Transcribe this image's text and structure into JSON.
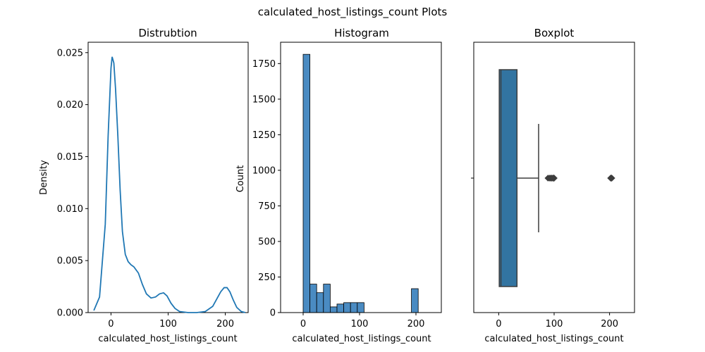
{
  "figure": {
    "suptitle": "calculated_host_listings_count Plots"
  },
  "chart_data": [
    {
      "type": "line",
      "title": "Distrubtion",
      "xlabel": "calculated_host_listings_count",
      "ylabel": "Density",
      "xlim": [
        -40,
        240
      ],
      "ylim": [
        0,
        0.026
      ],
      "x_ticks": [
        0,
        100,
        200
      ],
      "y_ticks": [
        0.0,
        0.005,
        0.01,
        0.015,
        0.02,
        0.025
      ],
      "x_tick_labels": [
        "0",
        "100",
        "200"
      ],
      "y_tick_labels": [
        "0.000",
        "0.005",
        "0.010",
        "0.015",
        "0.020",
        "0.025"
      ],
      "color": "#1f77b4",
      "series": [
        {
          "x": [
            -30,
            -20,
            -10,
            -5,
            0,
            2,
            5,
            8,
            12,
            16,
            20,
            25,
            30,
            35,
            40,
            48,
            55,
            62,
            70,
            78,
            85,
            92,
            98,
            105,
            112,
            120,
            135,
            150,
            165,
            178,
            185,
            192,
            198,
            203,
            208,
            214,
            220,
            228,
            235
          ],
          "y": [
            0.0002,
            0.0015,
            0.0085,
            0.017,
            0.0235,
            0.0246,
            0.024,
            0.0215,
            0.017,
            0.0118,
            0.0078,
            0.0056,
            0.0049,
            0.0046,
            0.0044,
            0.0038,
            0.0027,
            0.0018,
            0.0014,
            0.0015,
            0.0018,
            0.0019,
            0.0016,
            0.0009,
            0.0004,
            0.0001,
            0.0,
            0.0,
            0.0001,
            0.0006,
            0.0013,
            0.002,
            0.0024,
            0.0024,
            0.002,
            0.0012,
            0.0005,
            0.0001,
            0.0
          ]
        }
      ]
    },
    {
      "type": "bar",
      "title": "Histogram",
      "xlabel": "calculated_host_listings_count",
      "ylabel": "Count",
      "xlim": [
        -40,
        245
      ],
      "ylim": [
        0,
        1900
      ],
      "x_ticks": [
        0,
        100,
        200
      ],
      "y_ticks": [
        0,
        250,
        500,
        750,
        1000,
        1250,
        1500,
        1750
      ],
      "x_tick_labels": [
        "0",
        "100",
        "200"
      ],
      "y_tick_labels": [
        "0",
        "250",
        "500",
        "750",
        "1000",
        "1250",
        "1500",
        "1750"
      ],
      "color": "#4a8bc2",
      "bins": [
        {
          "x0": 0,
          "x1": 12,
          "value": 1815
        },
        {
          "x0": 12,
          "x1": 24,
          "value": 200
        },
        {
          "x0": 24,
          "x1": 36,
          "value": 140
        },
        {
          "x0": 36,
          "x1": 48,
          "value": 200
        },
        {
          "x0": 48,
          "x1": 60,
          "value": 40
        },
        {
          "x0": 60,
          "x1": 72,
          "value": 60
        },
        {
          "x0": 72,
          "x1": 84,
          "value": 70
        },
        {
          "x0": 84,
          "x1": 96,
          "value": 70
        },
        {
          "x0": 96,
          "x1": 108,
          "value": 70
        },
        {
          "x0": 108,
          "x1": 120,
          "value": 0
        },
        {
          "x0": 120,
          "x1": 132,
          "value": 0
        },
        {
          "x0": 132,
          "x1": 144,
          "value": 0
        },
        {
          "x0": 144,
          "x1": 156,
          "value": 0
        },
        {
          "x0": 156,
          "x1": 168,
          "value": 0
        },
        {
          "x0": 168,
          "x1": 180,
          "value": 0
        },
        {
          "x0": 180,
          "x1": 192,
          "value": 0
        },
        {
          "x0": 192,
          "x1": 204,
          "value": 168
        }
      ]
    },
    {
      "type": "boxplot",
      "title": "Boxplot",
      "xlabel": "calculated_host_listings_count",
      "xlim": [
        -45,
        245
      ],
      "x_ticks": [
        0,
        100,
        200
      ],
      "x_tick_labels": [
        "0",
        "100",
        "200"
      ],
      "color": "#3274a1",
      "box": {
        "whisker_low": 1,
        "q1": 1,
        "median": 4,
        "q3": 33,
        "whisker_high": 72
      },
      "outliers": [
        89,
        92,
        94,
        96,
        98,
        99,
        100,
        202,
        203,
        204
      ]
    }
  ]
}
